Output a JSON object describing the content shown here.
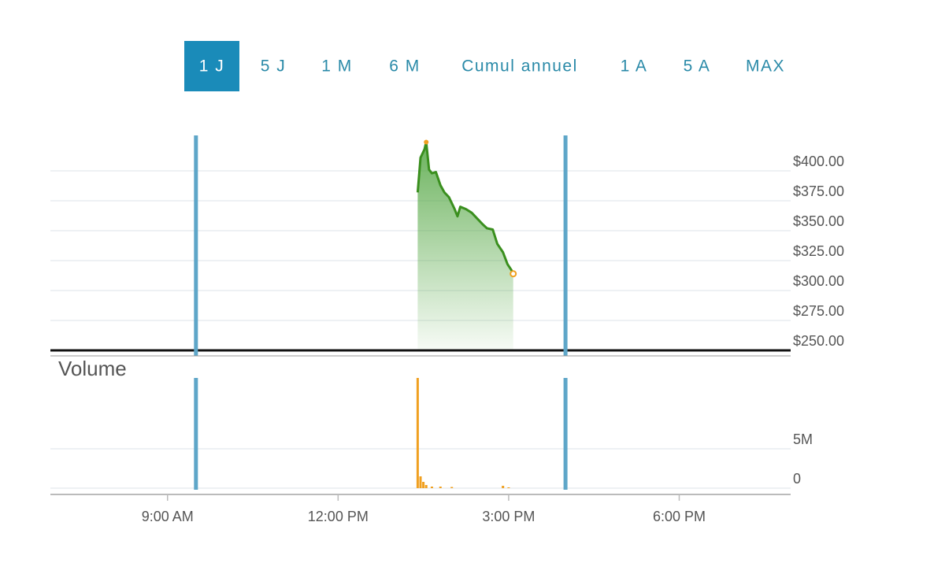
{
  "range_buttons": [
    "1 J",
    "5 J",
    "1 M",
    "6 M",
    "Cumul annuel",
    "1 A",
    "5 A",
    "MAX"
  ],
  "active_range_index": 0,
  "chart_data": [
    {
      "type": "area",
      "series": [
        {
          "color": "#3a8f1e",
          "x": [
            13.4,
            13.45,
            13.52,
            13.55,
            13.6,
            13.65,
            13.72,
            13.8,
            13.87,
            13.95,
            14.05,
            14.1,
            14.15,
            14.25,
            14.35,
            14.45,
            14.55,
            14.62,
            14.72,
            14.8,
            14.9,
            14.98,
            15.05,
            15.08
          ],
          "values": [
            382,
            411,
            418,
            424,
            401,
            398,
            399,
            388,
            382,
            378,
            368,
            362,
            370,
            368,
            365,
            360,
            355,
            352,
            351,
            339,
            332,
            322,
            317,
            314
          ]
        }
      ],
      "xlim": [
        6.94,
        19.96
      ],
      "ylim": [
        250,
        425
      ],
      "yticks": [
        {
          "value": 250,
          "label": "$250.00"
        },
        {
          "value": 275,
          "label": "$275.00"
        },
        {
          "value": 300,
          "label": "$300.00"
        },
        {
          "value": 325,
          "label": "$325.00"
        },
        {
          "value": 350,
          "label": "$350.00"
        },
        {
          "value": 375,
          "label": "$375.00"
        },
        {
          "value": 400,
          "label": "$400.00"
        }
      ],
      "session_lines": [
        9.5,
        16
      ],
      "grid": true
    },
    {
      "type": "bar",
      "title": "Volume",
      "series": [
        {
          "color": "#f0a020",
          "x": [
            13.4,
            13.45,
            13.5,
            13.55,
            13.65,
            13.8,
            14.0,
            14.9,
            15.0
          ],
          "values": [
            14000000,
            1500000,
            800000,
            400000,
            200000,
            200000,
            150000,
            300000,
            100000
          ]
        }
      ],
      "xlim": [
        6.94,
        19.96
      ],
      "ylim": [
        0,
        14000000
      ],
      "yticks": [
        0,
        {
          "value": 5000000,
          "label": "5M"
        }
      ],
      "xticks": [
        {
          "value": 9,
          "label": "9:00 AM"
        },
        {
          "value": 12,
          "label": "12:00 PM"
        },
        {
          "value": 15,
          "label": "3:00 PM"
        },
        {
          "value": 18,
          "label": "6:00 PM"
        }
      ],
      "session_lines": [
        9.5,
        16
      ],
      "grid": true
    }
  ]
}
